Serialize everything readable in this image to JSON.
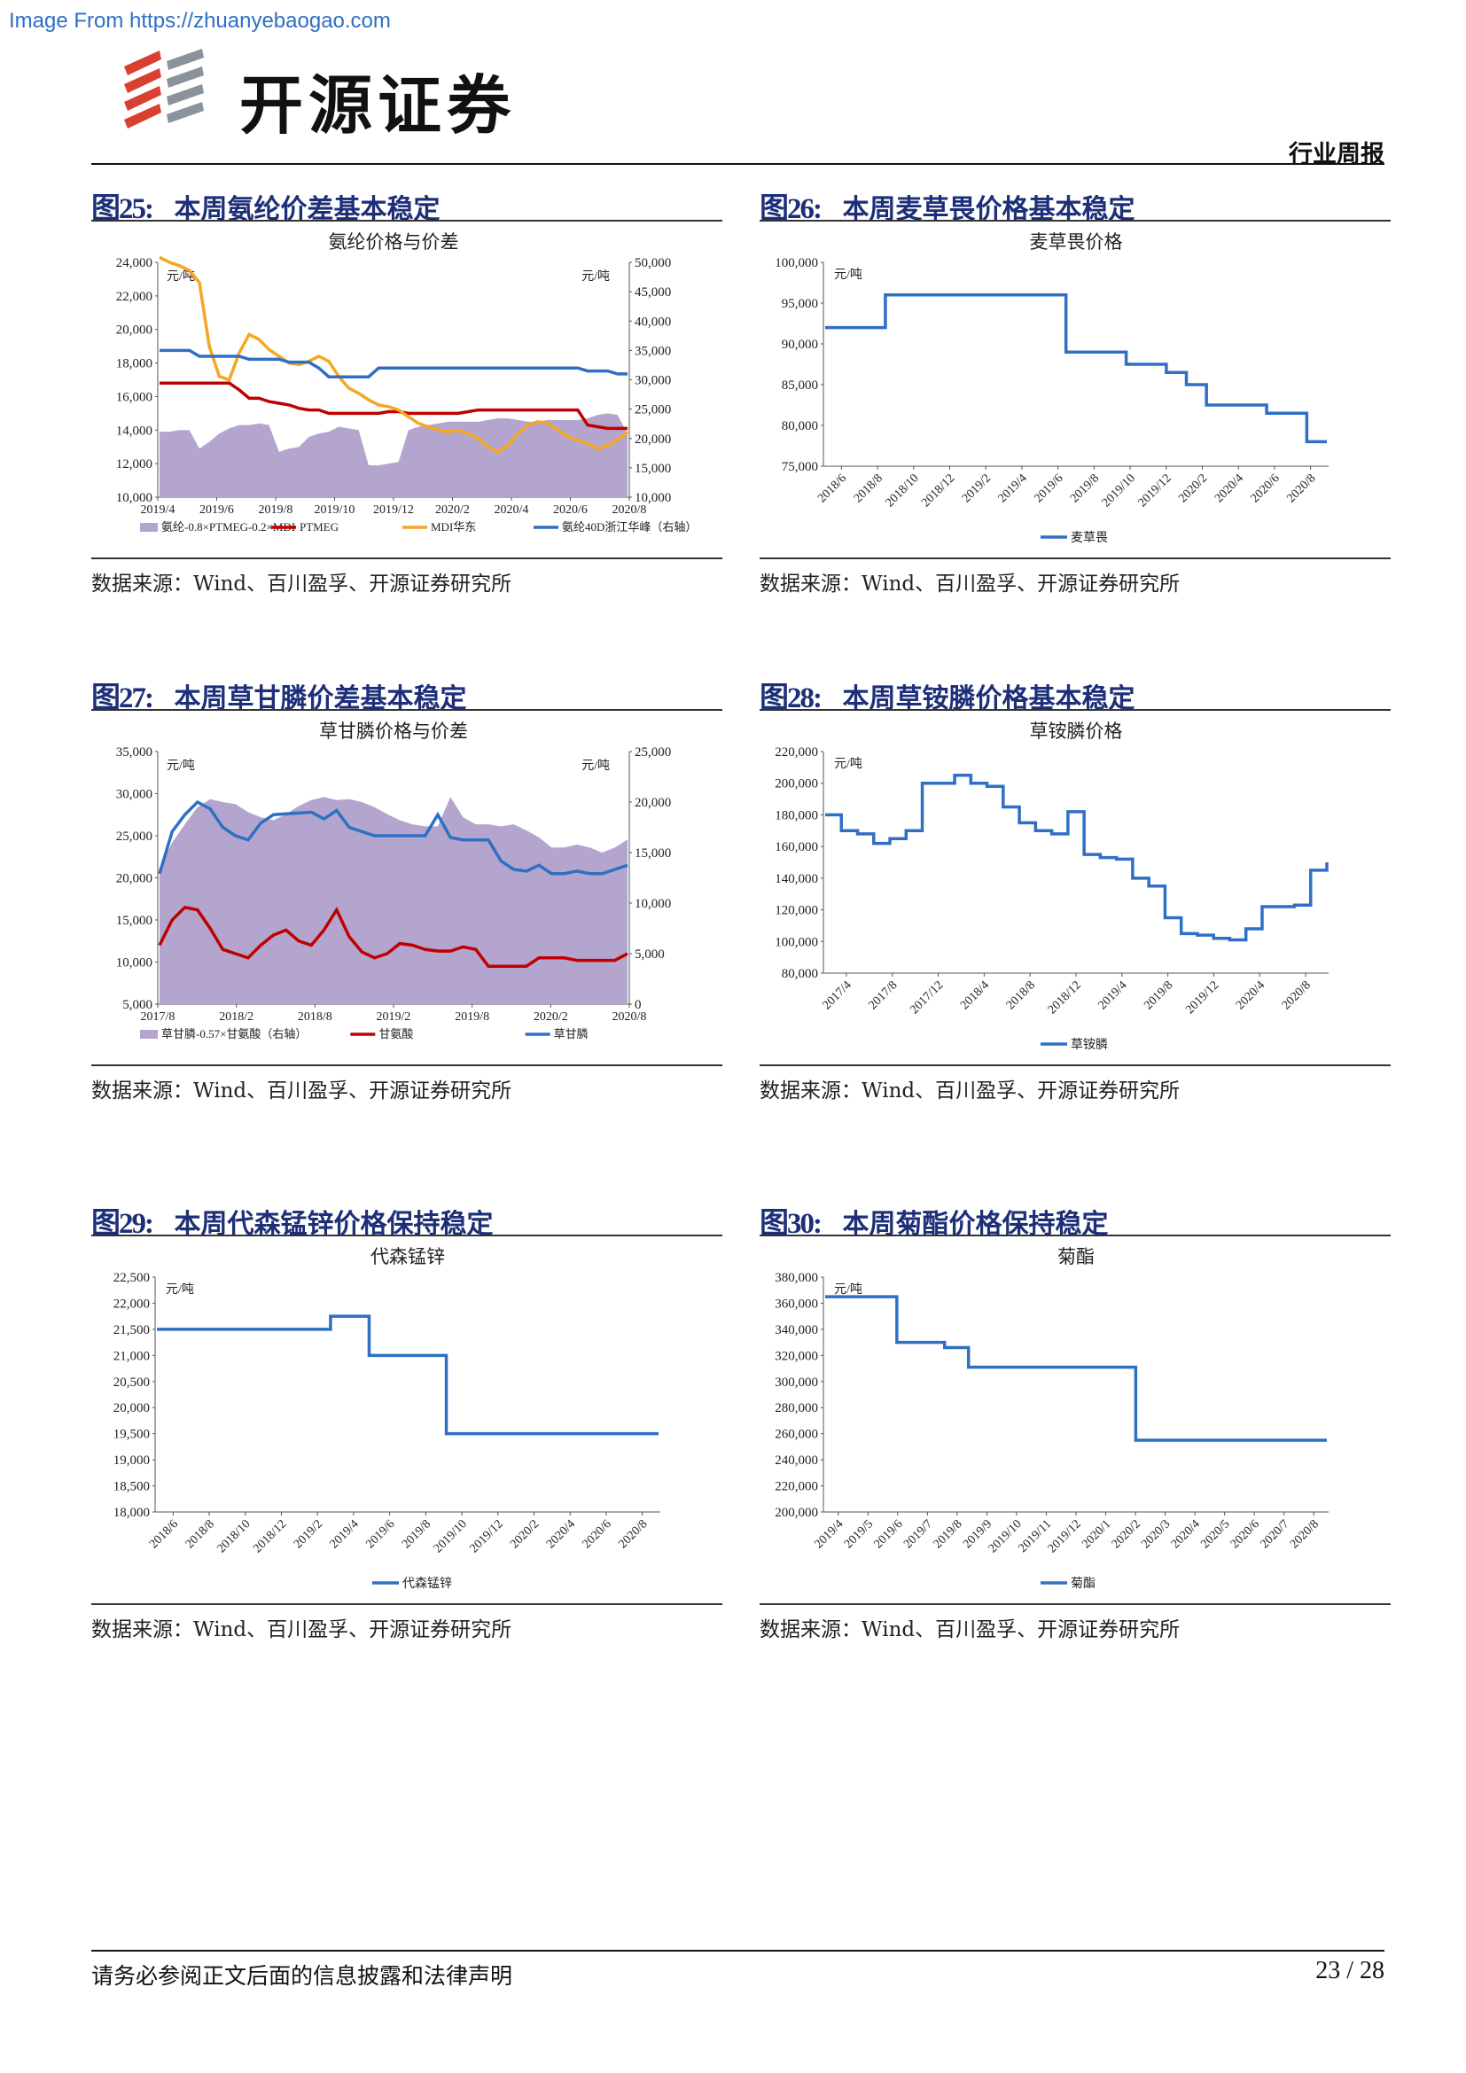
{
  "watermark": "Image From https://zhuanyebaogao.com",
  "header": {
    "company": "开源证券",
    "doc_type": "行业周报"
  },
  "source_text": "数据来源：Wind、百川盈孚、开源证券研究所",
  "footer": {
    "disclaimer": "请务必参阅正文后面的信息披露和法律声明",
    "page": "23 / 28"
  },
  "colors": {
    "title_blue": "#1d2f78",
    "line_blue": "#2f6fc4",
    "red": "#c00000",
    "orange": "#f5a623",
    "purple_area": "#b3a5cd"
  },
  "figures": [
    {
      "num": "图25:",
      "title": "本周氨纶价差基本稳定",
      "chart_data": {
        "type": "line",
        "title": "氨纶价格与价差",
        "unit_left": "元/吨",
        "unit_right": "元/吨",
        "ylim_left": [
          10000,
          24000
        ],
        "ylim_right": [
          10000,
          50000
        ],
        "yticks_left": [
          "24,000",
          "22,000",
          "20,000",
          "18,000",
          "16,000",
          "14,000",
          "12,000",
          "10,000"
        ],
        "yticks_right": [
          "50,000",
          "45,000",
          "40,000",
          "35,000",
          "30,000",
          "25,000",
          "20,000",
          "15,000",
          "10,000"
        ],
        "xticks": [
          "2019/4",
          "2019/6",
          "2019/8",
          "2019/10",
          "2019/12",
          "2020/2",
          "2020/4",
          "2020/6",
          "2020/8"
        ],
        "series": [
          {
            "name": "氨纶-0.8×PTMEG-0.2×MDI",
            "kind": "area",
            "axis": "left",
            "values": [
              13900,
              13900,
              14000,
              14000,
              12900,
              13300,
              13800,
              14100,
              14300,
              14300,
              14400,
              14300,
              12700,
              12900,
              13000,
              13600,
              13800,
              13900,
              14200,
              14100,
              14000,
              11900,
              11900,
              12000,
              12100,
              14000,
              14200,
              14300,
              14400,
              14500,
              14500,
              14500,
              14500,
              14600,
              14700,
              14700,
              14600,
              14500,
              14500,
              14600,
              14600,
              14600,
              14600,
              14700,
              14900,
              15000,
              14900,
              13800
            ]
          },
          {
            "name": "PTMEG",
            "kind": "line",
            "axis": "left",
            "values": [
              16800,
              16800,
              16800,
              16800,
              16800,
              16800,
              16800,
              16800,
              16400,
              15900,
              15900,
              15700,
              15600,
              15500,
              15300,
              15200,
              15200,
              15000,
              15000,
              15000,
              15000,
              15000,
              15000,
              15100,
              15100,
              15000,
              15000,
              15000,
              15000,
              15000,
              15000,
              15100,
              15200,
              15200,
              15200,
              15200,
              15200,
              15200,
              15200,
              15200,
              15200,
              15200,
              15200,
              14300,
              14200,
              14100,
              14100,
              14100
            ]
          },
          {
            "name": "MDI华东",
            "kind": "line",
            "axis": "left",
            "values": [
              24300,
              24000,
              23800,
              23500,
              22800,
              19000,
              17200,
              17000,
              18600,
              19700,
              19400,
              18800,
              18400,
              18000,
              17900,
              18100,
              18400,
              18100,
              17200,
              16500,
              16200,
              15800,
              15500,
              15400,
              15200,
              14800,
              14400,
              14200,
              14000,
              13900,
              14000,
              13800,
              13500,
              13000,
              12700,
              13100,
              13800,
              14300,
              14500,
              14400,
              14000,
              13600,
              13400,
              13200,
              12900,
              13100,
              13400,
              13900
            ]
          },
          {
            "name": "氨纶40D浙江华峰（右轴）",
            "kind": "line",
            "axis": "right",
            "values": [
              35000,
              35000,
              35000,
              35000,
              34000,
              34000,
              34000,
              34000,
              34000,
              33500,
              33500,
              33500,
              33500,
              33000,
              33000,
              33000,
              32000,
              30500,
              30500,
              30500,
              30500,
              30500,
              32000,
              32000,
              32000,
              32000,
              32000,
              32000,
              32000,
              32000,
              32000,
              32000,
              32000,
              32000,
              32000,
              32000,
              32000,
              32000,
              32000,
              32000,
              32000,
              32000,
              32000,
              31500,
              31500,
              31500,
              31000,
              31000
            ]
          }
        ]
      }
    },
    {
      "num": "图26:",
      "title": "本周麦草畏价格基本稳定",
      "chart_data": {
        "type": "line",
        "title": "麦草畏价格",
        "unit": "元/吨",
        "ylim": [
          75000,
          100000
        ],
        "yticks": [
          "100,000",
          "95,000",
          "90,000",
          "85,000",
          "80,000",
          "75,000"
        ],
        "xticks": [
          "2018/6",
          "2018/8",
          "2018/10",
          "2018/12",
          "2019/2",
          "2019/4",
          "2019/6",
          "2019/8",
          "2019/10",
          "2019/12",
          "2020/2",
          "2020/4",
          "2020/6",
          "2020/8"
        ],
        "series": [
          {
            "name": "麦草畏",
            "values": [
              92000,
              92000,
              92000,
              96000,
              96000,
              96000,
              96000,
              96000,
              96000,
              96000,
              96000,
              96000,
              89000,
              89000,
              89000,
              87500,
              87500,
              86500,
              85000,
              82500,
              82500,
              82500,
              81500,
              81500,
              78000,
              78000
            ]
          }
        ]
      }
    },
    {
      "num": "图27:",
      "title": "本周草甘膦价差基本稳定",
      "chart_data": {
        "type": "line",
        "title": "草甘膦价格与价差",
        "unit_left": "元/吨",
        "unit_right": "元/吨",
        "ylim_left": [
          5000,
          35000
        ],
        "ylim_right": [
          0,
          25000
        ],
        "yticks_left": [
          "35,000",
          "30,000",
          "25,000",
          "20,000",
          "15,000",
          "10,000",
          "5,000"
        ],
        "yticks_right": [
          "25,000",
          "20,000",
          "15,000",
          "10,000",
          "5,000",
          "0"
        ],
        "xticks": [
          "2017/8",
          "2018/2",
          "2018/8",
          "2019/2",
          "2019/8",
          "2020/2",
          "2020/8"
        ],
        "series": [
          {
            "name": "草甘膦-0.57×甘氨酸（右轴）",
            "kind": "area",
            "axis": "right",
            "values": [
              13500,
              16000,
              17800,
              19500,
              20300,
              20000,
              19800,
              19000,
              18500,
              18200,
              18800,
              19600,
              20200,
              20500,
              20200,
              20300,
              20000,
              19500,
              18800,
              18200,
              17800,
              17600,
              17600,
              20500,
              18500,
              17800,
              17800,
              17600,
              17800,
              17200,
              16500,
              15500,
              15500,
              15800,
              15500,
              15000,
              15500,
              16300
            ]
          },
          {
            "name": "甘氨酸",
            "kind": "line",
            "axis": "left",
            "values": [
              12000,
              15000,
              16500,
              16200,
              14000,
              11500,
              11000,
              10500,
              12000,
              13200,
              13800,
              12500,
              12000,
              13800,
              16200,
              13000,
              11200,
              10500,
              11000,
              12200,
              12000,
              11500,
              11300,
              11300,
              11800,
              11500,
              9500,
              9500,
              9500,
              9500,
              10500,
              10500,
              10500,
              10200,
              10200,
              10200,
              10200,
              11000
            ]
          },
          {
            "name": "草甘膦",
            "kind": "line",
            "axis": "left",
            "values": [
              20500,
              25500,
              27500,
              29000,
              28200,
              26000,
              25000,
              24500,
              26500,
              27500,
              27600,
              27700,
              27800,
              27000,
              28000,
              26000,
              25500,
              25000,
              25000,
              25000,
              25000,
              25000,
              27500,
              24800,
              24500,
              24500,
              24500,
              22000,
              21000,
              20800,
              21500,
              20500,
              20500,
              20800,
              20500,
              20500,
              21000,
              21500
            ]
          }
        ]
      }
    },
    {
      "num": "图28:",
      "title": "本周草铵膦价格基本稳定",
      "chart_data": {
        "type": "line",
        "title": "草铵膦价格",
        "unit": "元/吨",
        "ylim": [
          80000,
          220000
        ],
        "yticks": [
          "220,000",
          "200,000",
          "180,000",
          "160,000",
          "140,000",
          "120,000",
          "100,000",
          "80,000"
        ],
        "xticks": [
          "2017/4",
          "2017/8",
          "2017/12",
          "2018/4",
          "2018/8",
          "2018/12",
          "2019/4",
          "2019/8",
          "2019/12",
          "2020/4",
          "2020/8"
        ],
        "series": [
          {
            "name": "草铵膦",
            "values": [
              180000,
              170000,
              168000,
              162000,
              165000,
              170000,
              200000,
              200000,
              205000,
              200000,
              198000,
              185000,
              175000,
              170000,
              168000,
              182000,
              155000,
              153000,
              152000,
              140000,
              135000,
              115000,
              105000,
              104000,
              102000,
              101000,
              108000,
              122000,
              122000,
              123000,
              145000,
              150000
            ]
          }
        ]
      }
    },
    {
      "num": "图29:",
      "title": "本周代森锰锌价格保持稳定",
      "chart_data": {
        "type": "line",
        "title": "代森锰锌",
        "unit": "元/吨",
        "ylim": [
          18000,
          22500
        ],
        "yticks": [
          "22,500",
          "22,000",
          "21,500",
          "21,000",
          "20,500",
          "20,000",
          "19,500",
          "19,000",
          "18,500",
          "18,000"
        ],
        "xticks": [
          "2018/6",
          "2018/8",
          "2018/10",
          "2018/12",
          "2019/2",
          "2019/4",
          "2019/6",
          "2019/8",
          "2019/10",
          "2019/12",
          "2020/2",
          "2020/4",
          "2020/6",
          "2020/8"
        ],
        "series": [
          {
            "name": "代森锰锌",
            "values": [
              21500,
              21500,
              21500,
              21500,
              21500,
              21500,
              21500,
              21500,
              21500,
              21750,
              21750,
              21000,
              21000,
              21000,
              21000,
              19500,
              19500,
              19500,
              19500,
              19500,
              19500,
              19500,
              19500,
              19500,
              19500,
              19500,
              19500
            ]
          }
        ]
      }
    },
    {
      "num": "图30:",
      "title": "本周菊酯价格保持稳定",
      "chart_data": {
        "type": "line",
        "title": "菊酯",
        "unit": "元/吨",
        "ylim": [
          200000,
          380000
        ],
        "yticks": [
          "380,000",
          "360,000",
          "340,000",
          "320,000",
          "300,000",
          "280,000",
          "260,000",
          "240,000",
          "220,000",
          "200,000"
        ],
        "xticks": [
          "2019/4",
          "2019/5",
          "2019/6",
          "2019/7",
          "2019/8",
          "2019/9",
          "2019/10",
          "2019/11",
          "2019/12",
          "2020/1",
          "2020/2",
          "2020/3",
          "2020/4",
          "2020/5",
          "2020/6",
          "2020/7",
          "2020/8"
        ],
        "series": [
          {
            "name": "菊酯",
            "values": [
              365000,
              365000,
              365000,
              330000,
              330000,
              326000,
              311000,
              311000,
              311000,
              311000,
              311000,
              311000,
              311000,
              255000,
              255000,
              255000,
              255000,
              255000,
              255000,
              255000,
              255000,
              255000
            ]
          }
        ]
      }
    }
  ]
}
